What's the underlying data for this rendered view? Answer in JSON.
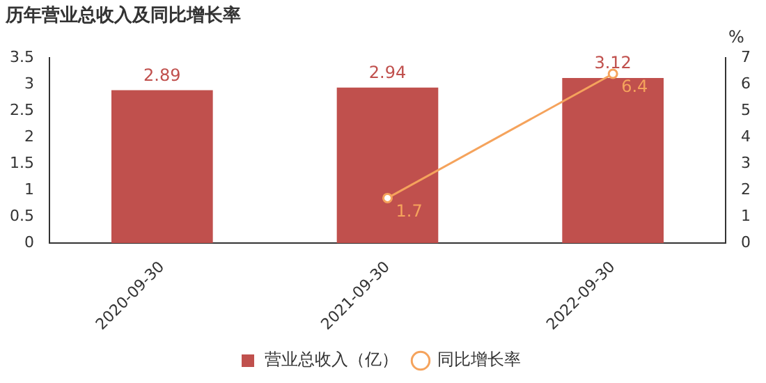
{
  "chart_data": {
    "type": "bar",
    "title": "历年营业总收入及同比增长率",
    "y2label": "%",
    "categories": [
      "2020-09-30",
      "2021-09-30",
      "2022-09-30"
    ],
    "series": [
      {
        "name": "营业总收入（亿）",
        "color": "#c0504d",
        "values": [
          2.89,
          2.94,
          3.12
        ]
      },
      {
        "name": "同比增长率",
        "type": "line",
        "axis": "y2",
        "color": "#f5a35c",
        "values": [
          null,
          1.7,
          6.4
        ]
      }
    ],
    "ylim": [
      0,
      3.5
    ],
    "yticks": [
      0,
      0.5,
      1,
      1.5,
      2,
      2.5,
      3,
      3.5
    ],
    "y2lim": [
      0,
      7
    ],
    "y2ticks": [
      0,
      1,
      2,
      3,
      4,
      5,
      6,
      7
    ],
    "data_labels": true,
    "legend": "bottom",
    "grid": false,
    "marker": "circle",
    "line_style": "solid"
  }
}
